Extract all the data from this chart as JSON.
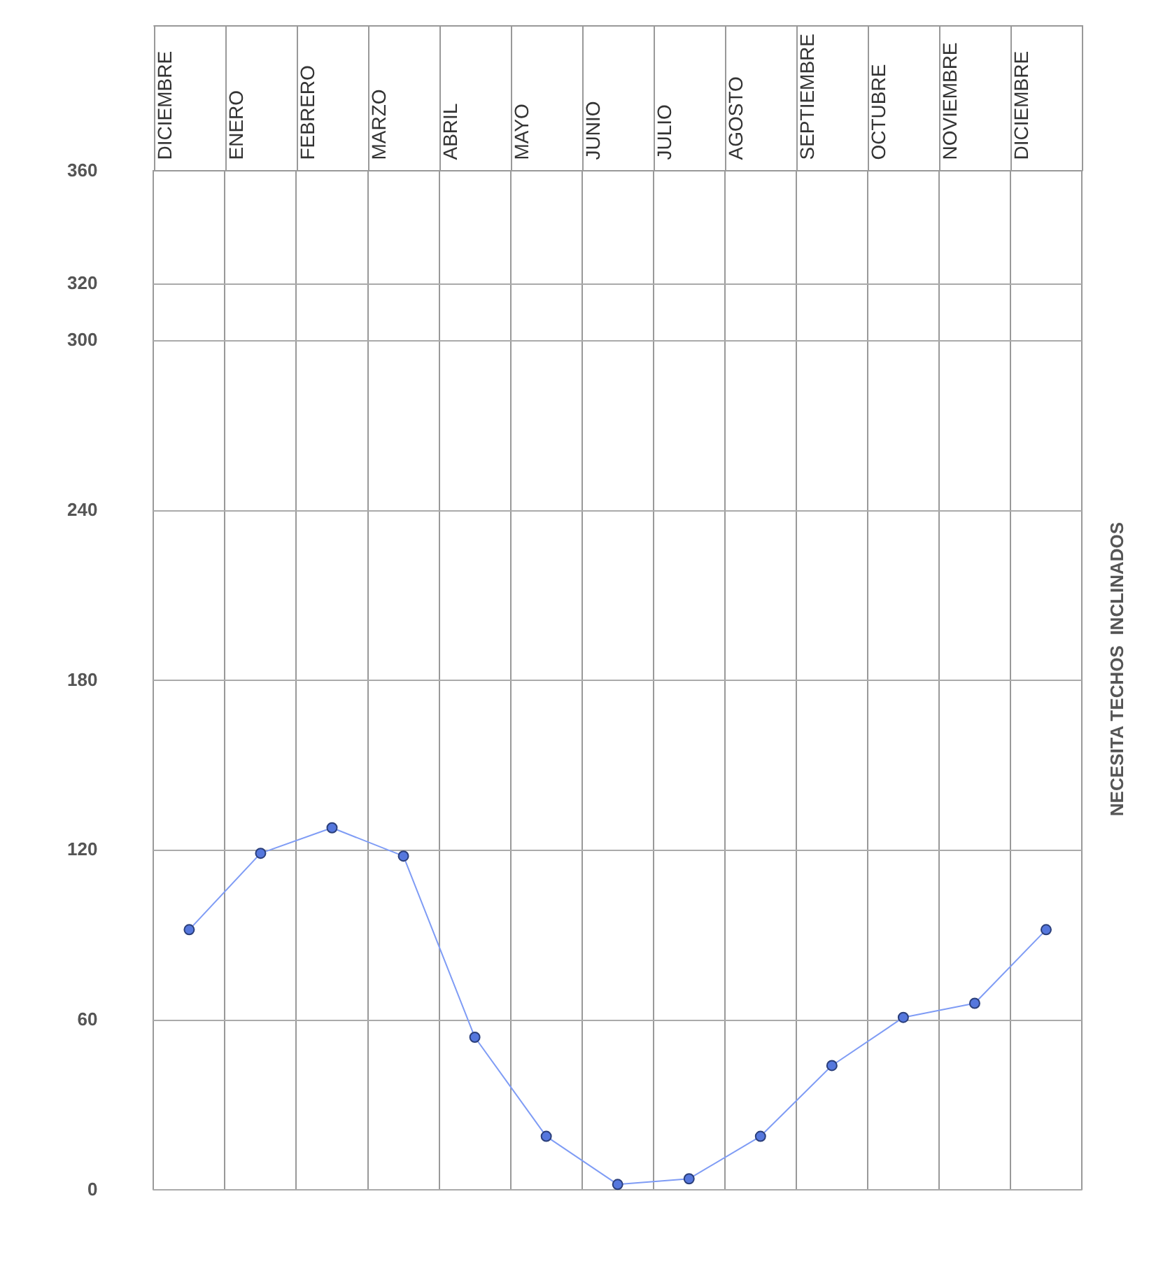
{
  "chart_data": {
    "type": "line",
    "categories": [
      "DICIEMBRE",
      "ENERO",
      "FEBRERO",
      "MARZO",
      "ABRIL",
      "MAYO",
      "JUNIO",
      "JULIO",
      "AGOSTO",
      "SEPTIEMBRE",
      "OCTUBRE",
      "NOVIEMBRE",
      "DICIEMBRE"
    ],
    "series": [
      {
        "color": "#7f9cf5",
        "values": [
          92,
          119,
          128,
          118,
          54,
          19,
          2,
          4,
          19,
          44,
          61,
          66,
          92
        ]
      }
    ],
    "ylim": [
      0,
      360
    ],
    "yticks": [
      0,
      60,
      120,
      180,
      240,
      300,
      320,
      360
    ],
    "grid": true,
    "marker": "circle",
    "line_style": "solid",
    "legend": false,
    "annotations": [
      "NECESITA TECHOS  INCLINADOS"
    ]
  }
}
